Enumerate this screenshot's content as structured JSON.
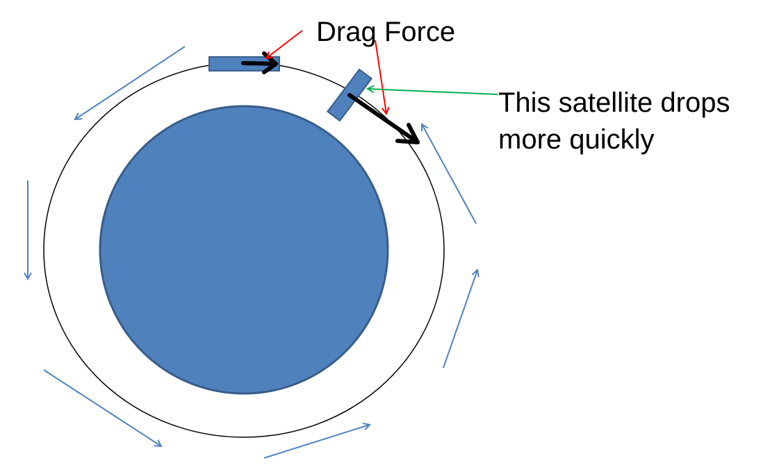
{
  "colors": {
    "earth_fill": "#4f81bd",
    "earth_stroke": "#385d8a",
    "orbit": "#000000",
    "motion_arrows": "#4f81bd",
    "drag_pointer": "#ff0000",
    "callout_pointer": "#00b050",
    "satellite_fill": "#4f81bd",
    "satellite_stroke": "#385d8a",
    "velocity_arrows": "#000000"
  },
  "labels": {
    "drag_force": "Drag Force",
    "satellite_note_line1": "This satellite drops",
    "satellite_note_line2": "more quickly"
  }
}
